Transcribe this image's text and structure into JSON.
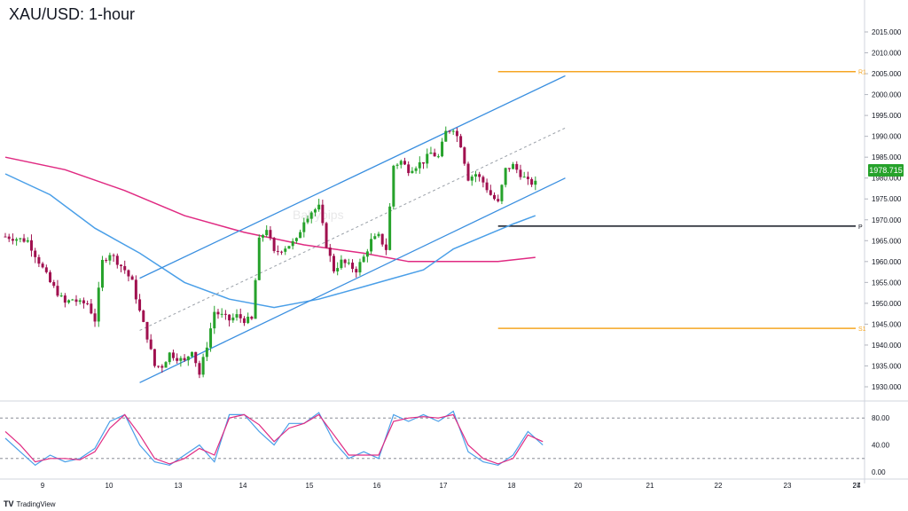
{
  "title": "XAU/USD: 1-hour",
  "brand": {
    "logo": "TV",
    "name": "TradingView"
  },
  "watermark": "Babypips",
  "colors": {
    "bull": "#26a22b",
    "bear": "#a0104f",
    "channel": "#3a8fe0",
    "ma_blue": "#4a9fe8",
    "ma_pink": "#e02a82",
    "pivot_orange": "#f5a623",
    "pivot_black": "#131722",
    "stoch_k": "#4a9fe8",
    "stoch_d": "#e02a82"
  },
  "chart_data": [
    {
      "type": "candlestick",
      "title": "XAU/USD: 1-hour",
      "ylim": [
        1927.5,
        2017
      ],
      "y_ticks": [
        "2015.000",
        "2010.000",
        "2005.000",
        "2000.000",
        "1995.000",
        "1990.000",
        "1985.000",
        "1980.000",
        "1975.000",
        "1970.000",
        "1965.000",
        "1960.000",
        "1955.000",
        "1950.000",
        "1945.000",
        "1940.000",
        "1935.000",
        "1930.000"
      ],
      "x_ticks": [
        "9",
        "10",
        "13",
        "14",
        "15",
        "16",
        "17",
        "18",
        "20",
        "21",
        "22",
        "23",
        "24",
        "27"
      ],
      "last_price": "1978.715",
      "close_path": [
        [
          0,
          1966
        ],
        [
          3,
          1965
        ],
        [
          6,
          1955
        ],
        [
          8,
          1950
        ],
        [
          9,
          1951
        ],
        [
          10,
          1950
        ],
        [
          11,
          1950
        ],
        [
          12,
          1946
        ],
        [
          13,
          1960
        ],
        [
          14,
          1962
        ],
        [
          15,
          1960
        ],
        [
          16,
          1958
        ],
        [
          17,
          1955
        ],
        [
          18,
          1948
        ],
        [
          19,
          1942
        ],
        [
          20,
          1935
        ],
        [
          21,
          1935
        ],
        [
          22,
          1938
        ],
        [
          23,
          1937
        ],
        [
          24,
          1936
        ],
        [
          25,
          1939
        ],
        [
          26,
          1933
        ],
        [
          27,
          1940
        ],
        [
          28,
          1948
        ],
        [
          29,
          1947
        ],
        [
          30,
          1946
        ],
        [
          31,
          1947
        ],
        [
          32,
          1946
        ],
        [
          33,
          1946
        ],
        [
          34,
          1965
        ],
        [
          35,
          1968
        ],
        [
          36,
          1962
        ],
        [
          37,
          1963
        ],
        [
          38,
          1964
        ],
        [
          39,
          1965
        ],
        [
          40,
          1970
        ],
        [
          41,
          1972
        ],
        [
          42,
          1973
        ],
        [
          43,
          1964
        ],
        [
          44,
          1958
        ],
        [
          45,
          1960
        ],
        [
          46,
          1959
        ],
        [
          47,
          1958
        ],
        [
          48,
          1961
        ],
        [
          49,
          1965
        ],
        [
          50,
          1966
        ],
        [
          51,
          1963
        ],
        [
          52,
          1983
        ],
        [
          53,
          1984
        ],
        [
          54,
          1982
        ],
        [
          55,
          1983
        ],
        [
          56,
          1984
        ],
        [
          57,
          1986
        ],
        [
          58,
          1985
        ],
        [
          59,
          1991
        ],
        [
          60,
          1992
        ],
        [
          61,
          1988
        ],
        [
          62,
          1980
        ],
        [
          63,
          1981
        ],
        [
          64,
          1979
        ],
        [
          65,
          1976
        ],
        [
          66,
          1974
        ],
        [
          67,
          1982
        ],
        [
          68,
          1983
        ],
        [
          69,
          1981
        ],
        [
          70,
          1979
        ],
        [
          71,
          1978.7
        ]
      ],
      "close_slot_range": [
        0,
        71
      ],
      "moving_averages": [
        {
          "color": "pink",
          "points": [
            [
              0,
              1985
            ],
            [
              8,
              1982
            ],
            [
              16,
              1977
            ],
            [
              24,
              1971
            ],
            [
              32,
              1967
            ],
            [
              40,
              1964
            ],
            [
              48,
              1962
            ],
            [
              54,
              1960
            ],
            [
              60,
              1960
            ],
            [
              66,
              1960
            ],
            [
              71,
              1961
            ]
          ]
        },
        {
          "color": "blue",
          "points": [
            [
              0,
              1981
            ],
            [
              6,
              1976
            ],
            [
              12,
              1968
            ],
            [
              18,
              1962
            ],
            [
              24,
              1955
            ],
            [
              30,
              1951
            ],
            [
              36,
              1949
            ],
            [
              42,
              1951
            ],
            [
              48,
              1954
            ],
            [
              52,
              1956
            ],
            [
              56,
              1958
            ],
            [
              60,
              1963
            ],
            [
              64,
              1966
            ],
            [
              68,
              1969
            ],
            [
              71,
              1971
            ]
          ]
        }
      ],
      "channel_lines": [
        {
          "name": "upper",
          "points": [
            [
              18,
              1956
            ],
            [
              75,
              2004.5
            ]
          ]
        },
        {
          "name": "lower",
          "points": [
            [
              18,
              1931
            ],
            [
              75,
              1980
            ]
          ]
        },
        {
          "name": "mid",
          "points": [
            [
              18,
              1943.5
            ],
            [
              75,
              1992
            ]
          ],
          "dashed": true
        }
      ],
      "pivot_levels": [
        {
          "label": "R1",
          "value": 2005.5,
          "color": "orange",
          "from_slot": 66
        },
        {
          "label": "P",
          "value": 1968.5,
          "color": "black",
          "from_slot": 66
        },
        {
          "label": "S1",
          "value": 1944,
          "color": "orange",
          "from_slot": 66
        }
      ]
    },
    {
      "type": "line",
      "title": "",
      "ylim": [
        0,
        100
      ],
      "y_ticks": [
        "80.00",
        "40.00",
        "0.00"
      ],
      "reference_levels": [
        80,
        20
      ],
      "series": [
        {
          "name": "",
          "color": "blue",
          "values": [
            [
              0,
              50
            ],
            [
              2,
              30
            ],
            [
              4,
              10
            ],
            [
              6,
              25
            ],
            [
              8,
              15
            ],
            [
              10,
              20
            ],
            [
              12,
              35
            ],
            [
              14,
              75
            ],
            [
              16,
              85
            ],
            [
              18,
              40
            ],
            [
              20,
              15
            ],
            [
              22,
              10
            ],
            [
              24,
              25
            ],
            [
              26,
              40
            ],
            [
              28,
              15
            ],
            [
              30,
              85
            ],
            [
              32,
              85
            ],
            [
              34,
              60
            ],
            [
              36,
              40
            ],
            [
              38,
              72
            ],
            [
              40,
              72
            ],
            [
              42,
              88
            ],
            [
              44,
              45
            ],
            [
              46,
              20
            ],
            [
              48,
              30
            ],
            [
              50,
              20
            ],
            [
              52,
              85
            ],
            [
              54,
              75
            ],
            [
              56,
              85
            ],
            [
              58,
              75
            ],
            [
              60,
              90
            ],
            [
              62,
              30
            ],
            [
              64,
              15
            ],
            [
              66,
              10
            ],
            [
              68,
              25
            ],
            [
              70,
              60
            ],
            [
              72,
              40
            ]
          ]
        },
        {
          "name": "",
          "color": "pink",
          "values": [
            [
              0,
              60
            ],
            [
              2,
              40
            ],
            [
              4,
              15
            ],
            [
              6,
              20
            ],
            [
              8,
              20
            ],
            [
              10,
              18
            ],
            [
              12,
              30
            ],
            [
              14,
              65
            ],
            [
              16,
              85
            ],
            [
              18,
              55
            ],
            [
              20,
              20
            ],
            [
              22,
              12
            ],
            [
              24,
              20
            ],
            [
              26,
              35
            ],
            [
              28,
              25
            ],
            [
              30,
              80
            ],
            [
              32,
              85
            ],
            [
              34,
              70
            ],
            [
              36,
              45
            ],
            [
              38,
              65
            ],
            [
              40,
              72
            ],
            [
              42,
              85
            ],
            [
              44,
              55
            ],
            [
              46,
              25
            ],
            [
              48,
              25
            ],
            [
              50,
              25
            ],
            [
              52,
              75
            ],
            [
              54,
              80
            ],
            [
              56,
              82
            ],
            [
              58,
              80
            ],
            [
              60,
              85
            ],
            [
              62,
              40
            ],
            [
              64,
              20
            ],
            [
              66,
              12
            ],
            [
              68,
              20
            ],
            [
              70,
              55
            ],
            [
              72,
              45
            ]
          ]
        }
      ]
    }
  ]
}
